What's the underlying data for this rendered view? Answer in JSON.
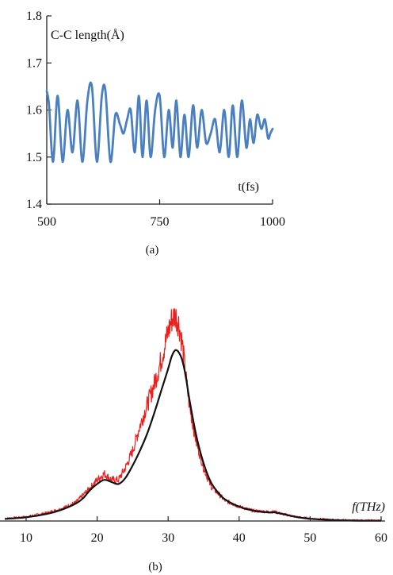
{
  "chart_data": [
    {
      "type": "line",
      "annotation_y": "C-C length(Å)",
      "annotation_x": "t(fs)",
      "caption": "(a)",
      "xlim": [
        500,
        1000
      ],
      "ylim": [
        1.4,
        1.8
      ],
      "xticks": [
        500,
        750,
        1000
      ],
      "yticks": [
        1.4,
        1.5,
        1.6,
        1.7,
        1.8
      ],
      "xtick_labels": [
        "500",
        "750",
        "1000"
      ],
      "ytick_labels": [
        "1.4",
        "1.5",
        "1.6",
        "1.7",
        "1.8"
      ],
      "grid": false,
      "series": [
        {
          "color": "#4a7fc0",
          "x": [
            500,
            505,
            514,
            524,
            535,
            546,
            557,
            568,
            579,
            590,
            600,
            611,
            622,
            630,
            641,
            652,
            662,
            670,
            678,
            686,
            695,
            704,
            712,
            721,
            730,
            740,
            750,
            760,
            770,
            779,
            787,
            796,
            805,
            814,
            824,
            833,
            843,
            853,
            863,
            873,
            883,
            893,
            903,
            912,
            922,
            932,
            942,
            950,
            958,
            966,
            975,
            983,
            990,
            995,
            1000
          ],
          "values": [
            1.64,
            1.61,
            1.49,
            1.63,
            1.49,
            1.6,
            1.51,
            1.62,
            1.49,
            1.62,
            1.65,
            1.49,
            1.63,
            1.64,
            1.49,
            1.59,
            1.57,
            1.55,
            1.58,
            1.6,
            1.51,
            1.63,
            1.5,
            1.62,
            1.5,
            1.6,
            1.63,
            1.5,
            1.6,
            1.52,
            1.62,
            1.5,
            1.59,
            1.5,
            1.61,
            1.52,
            1.6,
            1.53,
            1.55,
            1.58,
            1.51,
            1.6,
            1.5,
            1.61,
            1.5,
            1.62,
            1.52,
            1.58,
            1.53,
            1.59,
            1.56,
            1.58,
            1.54,
            1.55,
            1.56
          ]
        }
      ]
    },
    {
      "type": "line",
      "annotation_x": "f(THz)",
      "caption": "(b)",
      "xlim": [
        7,
        60
      ],
      "xticks": [
        10,
        20,
        30,
        40,
        50,
        60
      ],
      "xtick_labels": [
        "10",
        "20",
        "30",
        "40",
        "50",
        "60"
      ],
      "y_axis_visible": false,
      "grid": false,
      "series": [
        {
          "color": "#e8211d",
          "role": "noisy spectrum",
          "x": [
            7,
            10,
            13,
            15,
            17,
            19,
            20,
            21,
            22,
            23,
            24,
            25,
            26,
            27,
            28,
            29,
            30,
            30.5,
            31,
            31.5,
            32,
            32.5,
            33,
            34,
            35,
            36,
            38,
            40,
            42,
            44,
            45,
            46,
            48,
            50,
            53,
            56,
            60
          ],
          "values": [
            0.012,
            0.02,
            0.04,
            0.06,
            0.09,
            0.16,
            0.2,
            0.23,
            0.2,
            0.2,
            0.26,
            0.34,
            0.46,
            0.56,
            0.66,
            0.78,
            0.92,
            0.98,
            1.0,
            0.96,
            0.86,
            0.7,
            0.56,
            0.38,
            0.26,
            0.17,
            0.1,
            0.07,
            0.05,
            0.045,
            0.045,
            0.035,
            0.02,
            0.012,
            0.006,
            0.003,
            0.002
          ]
        },
        {
          "color": "#111111",
          "role": "smoothed fit",
          "x": [
            7,
            10,
            13,
            15,
            17,
            18,
            19,
            20,
            21,
            22,
            23,
            24,
            25,
            26,
            27,
            28,
            29,
            30,
            30.5,
            31,
            31.5,
            32,
            32.5,
            33,
            34,
            35,
            36,
            37,
            38,
            40,
            42,
            44,
            45,
            46,
            48,
            50,
            53,
            56,
            60
          ],
          "values": [
            0.01,
            0.018,
            0.035,
            0.055,
            0.085,
            0.11,
            0.15,
            0.18,
            0.2,
            0.19,
            0.18,
            0.21,
            0.27,
            0.34,
            0.42,
            0.52,
            0.63,
            0.74,
            0.8,
            0.83,
            0.82,
            0.78,
            0.7,
            0.59,
            0.41,
            0.28,
            0.19,
            0.14,
            0.105,
            0.07,
            0.05,
            0.042,
            0.042,
            0.035,
            0.02,
            0.011,
            0.005,
            0.002,
            0.001
          ]
        }
      ]
    }
  ]
}
